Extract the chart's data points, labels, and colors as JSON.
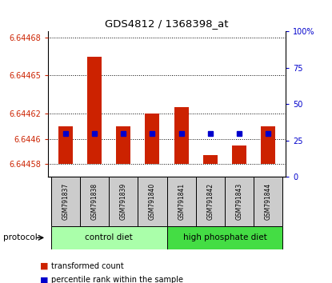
{
  "title": "GDS4812 / 1368398_at",
  "samples": [
    "GSM791837",
    "GSM791838",
    "GSM791839",
    "GSM791840",
    "GSM791841",
    "GSM791842",
    "GSM791843",
    "GSM791844"
  ],
  "transformed_counts": [
    6.64461,
    6.644665,
    6.64461,
    6.64462,
    6.644625,
    6.644587,
    6.644595,
    6.64461
  ],
  "dot_pcts": [
    30,
    30,
    30,
    30,
    30,
    30,
    30,
    30
  ],
  "ylim_left": [
    6.64457,
    6.644685
  ],
  "ylim_right": [
    0,
    100
  ],
  "yticks_left": [
    6.64458,
    6.6446,
    6.64462,
    6.64465,
    6.64468
  ],
  "ytick_labels_left": [
    "6.64458",
    "6.6446",
    "6.64462",
    "6.64465",
    "6.64468"
  ],
  "yticks_right": [
    0,
    25,
    50,
    75,
    100
  ],
  "ytick_labels_right": [
    "0",
    "25",
    "50",
    "75",
    "100%"
  ],
  "bar_color": "#cc2200",
  "dot_color": "#0000cc",
  "bar_bottom": 6.64458,
  "tick_color_left": "#cc2200",
  "tick_color_right": "#0000cc",
  "group1_label": "control diet",
  "group1_color": "#aaffaa",
  "group2_label": "high phosphate diet",
  "group2_color": "#44dd44",
  "label_box_color": "#cccccc",
  "bar_width": 0.5
}
